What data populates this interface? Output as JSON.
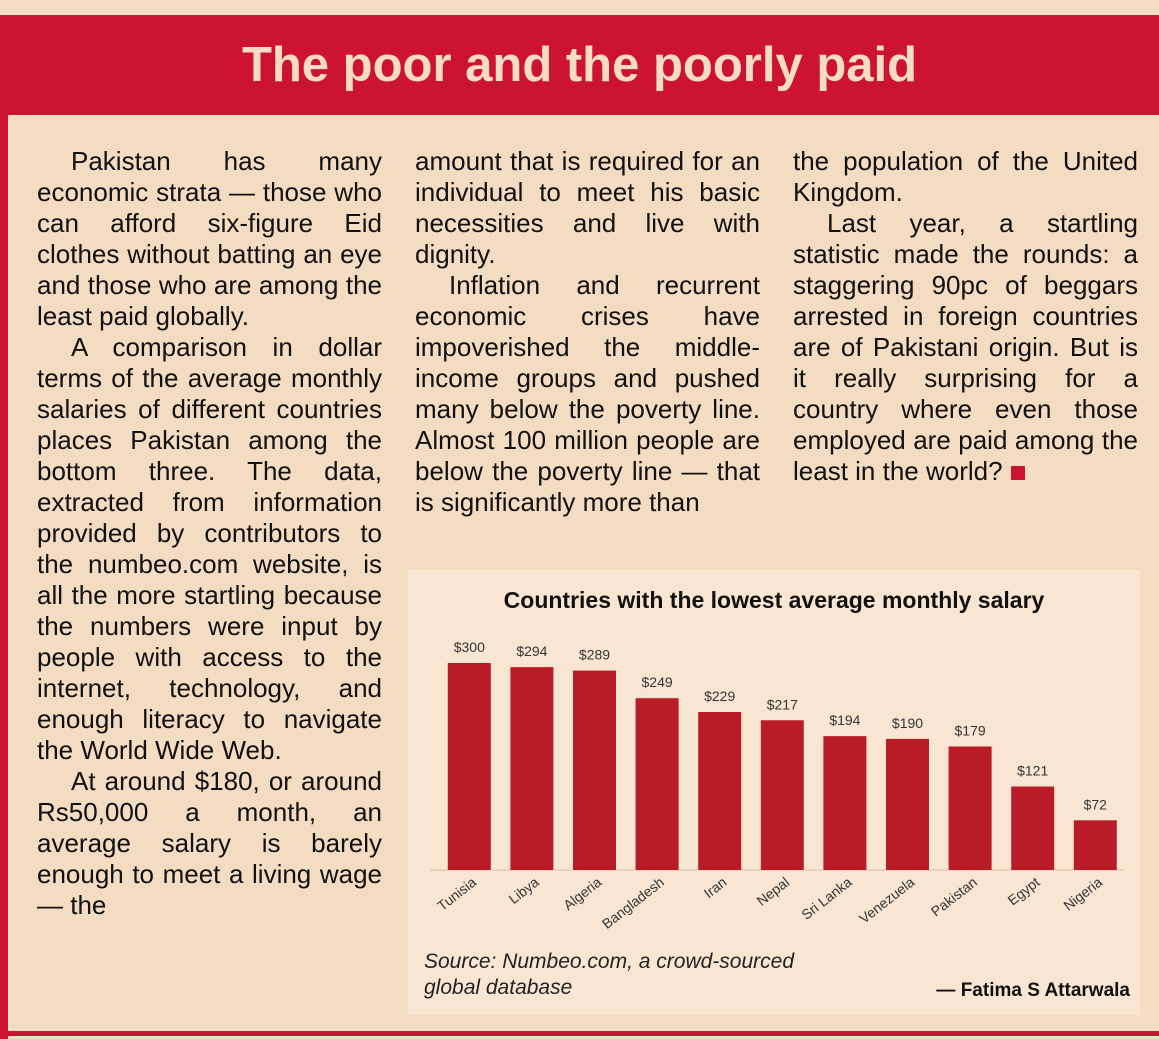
{
  "header": {
    "title": "The poor and the poorly paid"
  },
  "article": {
    "columns": [
      [
        "Pakistan has many economic strata — those who can afford six-figure Eid clothes without batting an eye and those who are among the least paid globally.",
        "A comparison in dollar terms of the average monthly salaries of different countries places Pakistan among the bottom three. The data, extracted from information provided by contributors to the numbeo.com website, is all the more startling because the numbers were input by people with access to the internet, technology, and enough literacy to navigate the World Wide Web.",
        "At around $180, or around Rs50,000 a month, an average salary is barely enough to meet a living wage — the"
      ],
      [
        "amount that is required for an individual to meet his basic necessities and live with dignity.",
        "Inflation and recurrent economic crises have impoverished the middle-income groups and pushed many below the poverty line. Almost 100 million people are below the poverty line — that is significantly more than"
      ],
      [
        "the population of the United Kingdom.",
        "Last year, a startling statistic made the rounds: a staggering 90pc of beggars arrested in foreign countries are of Pakistani origin. But is it really surprising for a country where even those employed are paid among the least in the world?"
      ]
    ]
  },
  "chart_data": {
    "type": "bar",
    "title": "Countries with the lowest average monthly salary",
    "categories": [
      "Tunisia",
      "Libya",
      "Algeria",
      "Bangladesh",
      "Iran",
      "Nepal",
      "Sri Lanka",
      "Venezuela",
      "Pakistan",
      "Egypt",
      "Nigeria"
    ],
    "values": [
      300,
      294,
      289,
      249,
      229,
      217,
      194,
      190,
      179,
      121,
      72
    ],
    "value_labels": [
      "$300",
      "$294",
      "$289",
      "$249",
      "$229",
      "$217",
      "$194",
      "$190",
      "$179",
      "$121",
      "$72"
    ],
    "color": "#b91c27",
    "source": [
      "Source: Numbeo.com, a crowd-sourced",
      "global database"
    ],
    "byline": "— Fatima S Attarwala"
  }
}
